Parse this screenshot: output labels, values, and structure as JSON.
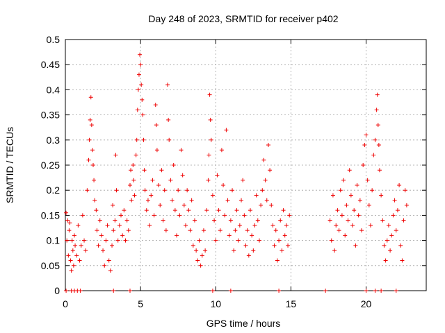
{
  "chart_data": {
    "type": "scatter",
    "title": "Day 248 of 2023, SRMTID for receiver p402",
    "xlabel": "GPS time / hours",
    "ylabel": "SRMTID / TECUs",
    "xlim": [
      0,
      24
    ],
    "ylim": [
      0,
      0.5
    ],
    "xticks": [
      0,
      5,
      10,
      15,
      20
    ],
    "xtick_labels": [
      "0",
      "5",
      "10",
      "15",
      "20"
    ],
    "yticks": [
      0,
      0.05,
      0.1,
      0.15,
      0.2,
      0.25,
      0.3,
      0.35,
      0.4,
      0.45,
      0.5
    ],
    "ytick_labels": [
      "0",
      "0.05",
      "0.1",
      "0.15",
      "0.2",
      "0.25",
      "0.3",
      "0.35",
      "0.4",
      "0.45",
      "0.5"
    ],
    "grid": true,
    "marker": "+",
    "color": "#ee0000",
    "series": [
      {
        "name": "SRMTID",
        "points": [
          [
            0.05,
            0.155
          ],
          [
            0.1,
            0.1
          ],
          [
            0.15,
            0.14
          ],
          [
            0.2,
            0.07
          ],
          [
            0.25,
            0.12
          ],
          [
            0.3,
            0.135
          ],
          [
            0.35,
            0.06
          ],
          [
            0.4,
            0.04
          ],
          [
            0.45,
            0.1
          ],
          [
            0.5,
            0.08
          ],
          [
            0.55,
            0.05
          ],
          [
            0.6,
            0.11
          ],
          [
            0.65,
            0.09
          ],
          [
            0.75,
            0.07
          ],
          [
            0.85,
            0.13
          ],
          [
            0.95,
            0.06
          ],
          [
            1.05,
            0.09
          ],
          [
            1.15,
            0.15
          ],
          [
            1.25,
            0.1
          ],
          [
            1.35,
            0.08
          ],
          [
            1.45,
            0.2
          ],
          [
            1.55,
            0.26
          ],
          [
            1.6,
            0.3
          ],
          [
            1.65,
            0.34
          ],
          [
            1.7,
            0.385
          ],
          [
            1.75,
            0.33
          ],
          [
            1.8,
            0.28
          ],
          [
            1.85,
            0.25
          ],
          [
            1.9,
            0.22
          ],
          [
            1.95,
            0.18
          ],
          [
            2.05,
            0.16
          ],
          [
            2.1,
            0.12
          ],
          [
            2.2,
            0.09
          ],
          [
            2.3,
            0.14
          ],
          [
            2.4,
            0.11
          ],
          [
            2.5,
            0.08
          ],
          [
            2.6,
            0.05
          ],
          [
            2.7,
            0.1
          ],
          [
            2.8,
            0.13
          ],
          [
            2.9,
            0.06
          ],
          [
            3.0,
            0.04
          ],
          [
            3.1,
            0.09
          ],
          [
            3.15,
            0.17
          ],
          [
            3.2,
            0.12
          ],
          [
            3.3,
            0.14
          ],
          [
            3.35,
            0.27
          ],
          [
            3.4,
            0.2
          ],
          [
            3.5,
            0.1
          ],
          [
            3.6,
            0.13
          ],
          [
            3.7,
            0.15
          ],
          [
            3.8,
            0.11
          ],
          [
            3.9,
            0.16
          ],
          [
            4.0,
            0.1
          ],
          [
            4.1,
            0.14
          ],
          [
            4.2,
            0.12
          ],
          [
            4.3,
            0.21
          ],
          [
            4.35,
            0.24
          ],
          [
            4.4,
            0.18
          ],
          [
            4.5,
            0.25
          ],
          [
            4.55,
            0.22
          ],
          [
            4.6,
            0.19
          ],
          [
            4.7,
            0.27
          ],
          [
            4.75,
            0.3
          ],
          [
            4.8,
            0.36
          ],
          [
            4.85,
            0.4
          ],
          [
            4.9,
            0.43
          ],
          [
            4.95,
            0.47
          ],
          [
            5.0,
            0.45
          ],
          [
            5.05,
            0.41
          ],
          [
            5.1,
            0.38
          ],
          [
            5.15,
            0.35
          ],
          [
            5.2,
            0.3
          ],
          [
            5.25,
            0.24
          ],
          [
            5.3,
            0.2
          ],
          [
            5.4,
            0.16
          ],
          [
            5.5,
            0.18
          ],
          [
            5.6,
            0.13
          ],
          [
            5.7,
            0.19
          ],
          [
            5.8,
            0.22
          ],
          [
            5.9,
            0.15
          ],
          [
            6.0,
            0.37
          ],
          [
            6.05,
            0.33
          ],
          [
            6.1,
            0.28
          ],
          [
            6.2,
            0.21
          ],
          [
            6.3,
            0.17
          ],
          [
            6.4,
            0.24
          ],
          [
            6.5,
            0.14
          ],
          [
            6.6,
            0.2
          ],
          [
            6.7,
            0.12
          ],
          [
            6.8,
            0.41
          ],
          [
            6.85,
            0.34
          ],
          [
            6.9,
            0.3
          ],
          [
            7.0,
            0.22
          ],
          [
            7.1,
            0.18
          ],
          [
            7.2,
            0.25
          ],
          [
            7.3,
            0.16
          ],
          [
            7.4,
            0.11
          ],
          [
            7.5,
            0.2
          ],
          [
            7.6,
            0.15
          ],
          [
            7.7,
            0.28
          ],
          [
            7.8,
            0.23
          ],
          [
            7.9,
            0.17
          ],
          [
            8.0,
            0.13
          ],
          [
            8.1,
            0.2
          ],
          [
            8.2,
            0.16
          ],
          [
            8.3,
            0.12
          ],
          [
            8.4,
            0.18
          ],
          [
            8.5,
            0.09
          ],
          [
            8.6,
            0.14
          ],
          [
            8.7,
            0.08
          ],
          [
            8.8,
            0.06
          ],
          [
            8.9,
            0.1
          ],
          [
            9.0,
            0.05
          ],
          [
            9.1,
            0.07
          ],
          [
            9.2,
            0.12
          ],
          [
            9.3,
            0.08
          ],
          [
            9.4,
            0.16
          ],
          [
            9.5,
            0.22
          ],
          [
            9.55,
            0.27
          ],
          [
            9.6,
            0.39
          ],
          [
            9.65,
            0.34
          ],
          [
            9.7,
            0.3
          ],
          [
            9.8,
            0.19
          ],
          [
            9.9,
            0.14
          ],
          [
            10.0,
            0.1
          ],
          [
            10.1,
            0.23
          ],
          [
            10.2,
            0.16
          ],
          [
            10.3,
            0.12
          ],
          [
            10.4,
            0.28
          ],
          [
            10.5,
            0.21
          ],
          [
            10.6,
            0.15
          ],
          [
            10.7,
            0.32
          ],
          [
            10.8,
            0.18
          ],
          [
            10.9,
            0.11
          ],
          [
            11.0,
            0.14
          ],
          [
            11.1,
            0.2
          ],
          [
            11.2,
            0.08
          ],
          [
            11.3,
            0.12
          ],
          [
            11.4,
            0.16
          ],
          [
            11.5,
            0.1
          ],
          [
            11.6,
            0.13
          ],
          [
            11.7,
            0.18
          ],
          [
            11.8,
            0.22
          ],
          [
            11.9,
            0.15
          ],
          [
            12.0,
            0.09
          ],
          [
            12.1,
            0.12
          ],
          [
            12.2,
            0.07
          ],
          [
            12.3,
            0.16
          ],
          [
            12.4,
            0.11
          ],
          [
            12.5,
            0.08
          ],
          [
            12.6,
            0.13
          ],
          [
            12.7,
            0.19
          ],
          [
            12.8,
            0.14
          ],
          [
            12.9,
            0.1
          ],
          [
            13.0,
            0.17
          ],
          [
            13.1,
            0.2
          ],
          [
            13.2,
            0.26
          ],
          [
            13.3,
            0.22
          ],
          [
            13.4,
            0.18
          ],
          [
            13.5,
            0.29
          ],
          [
            13.6,
            0.24
          ],
          [
            13.7,
            0.17
          ],
          [
            13.8,
            0.13
          ],
          [
            13.9,
            0.09
          ],
          [
            14.0,
            0.12
          ],
          [
            14.1,
            0.06
          ],
          [
            14.2,
            0.1
          ],
          [
            14.3,
            0.14
          ],
          [
            14.4,
            0.08
          ],
          [
            14.5,
            0.16
          ],
          [
            14.6,
            0.11
          ],
          [
            14.7,
            0.13
          ],
          [
            14.8,
            0.09
          ],
          [
            14.9,
            0.15
          ],
          [
            17.6,
            0.14
          ],
          [
            17.7,
            0.1
          ],
          [
            17.8,
            0.19
          ],
          [
            17.9,
            0.08
          ],
          [
            18.0,
            0.13
          ],
          [
            18.1,
            0.16
          ],
          [
            18.2,
            0.12
          ],
          [
            18.3,
            0.2
          ],
          [
            18.4,
            0.15
          ],
          [
            18.5,
            0.22
          ],
          [
            18.6,
            0.11
          ],
          [
            18.7,
            0.17
          ],
          [
            18.8,
            0.14
          ],
          [
            18.9,
            0.24
          ],
          [
            19.0,
            0.19
          ],
          [
            19.1,
            0.13
          ],
          [
            19.2,
            0.16
          ],
          [
            19.3,
            0.09
          ],
          [
            19.4,
            0.21
          ],
          [
            19.5,
            0.15
          ],
          [
            19.6,
            0.18
          ],
          [
            19.7,
            0.12
          ],
          [
            19.8,
            0.25
          ],
          [
            19.9,
            0.29
          ],
          [
            20.0,
            0.31
          ],
          [
            20.1,
            0.22
          ],
          [
            20.2,
            0.17
          ],
          [
            20.3,
            0.13
          ],
          [
            20.4,
            0.2
          ],
          [
            20.5,
            0.27
          ],
          [
            20.6,
            0.3
          ],
          [
            20.7,
            0.36
          ],
          [
            20.75,
            0.39
          ],
          [
            20.8,
            0.33
          ],
          [
            20.85,
            0.29
          ],
          [
            20.9,
            0.24
          ],
          [
            21.0,
            0.19
          ],
          [
            21.1,
            0.14
          ],
          [
            21.2,
            0.09
          ],
          [
            21.3,
            0.06
          ],
          [
            21.4,
            0.1
          ],
          [
            21.5,
            0.13
          ],
          [
            21.6,
            0.08
          ],
          [
            21.7,
            0.11
          ],
          [
            21.8,
            0.15
          ],
          [
            21.9,
            0.18
          ],
          [
            22.0,
            0.12
          ],
          [
            22.1,
            0.16
          ],
          [
            22.2,
            0.21
          ],
          [
            22.3,
            0.09
          ],
          [
            22.4,
            0.06
          ],
          [
            22.5,
            0.14
          ],
          [
            22.6,
            0.2
          ],
          [
            22.7,
            0.17
          ],
          [
            0.05,
            0
          ],
          [
            0.4,
            0
          ],
          [
            0.6,
            0
          ],
          [
            0.8,
            0
          ],
          [
            1.0,
            0
          ],
          [
            3.2,
            0
          ],
          [
            4.3,
            0
          ],
          [
            9.8,
            0
          ],
          [
            11.0,
            0
          ],
          [
            14.2,
            0
          ],
          [
            17.3,
            0
          ],
          [
            20.0,
            0
          ],
          [
            20.6,
            0
          ],
          [
            21.0,
            0
          ],
          [
            22.0,
            0
          ]
        ]
      }
    ]
  }
}
